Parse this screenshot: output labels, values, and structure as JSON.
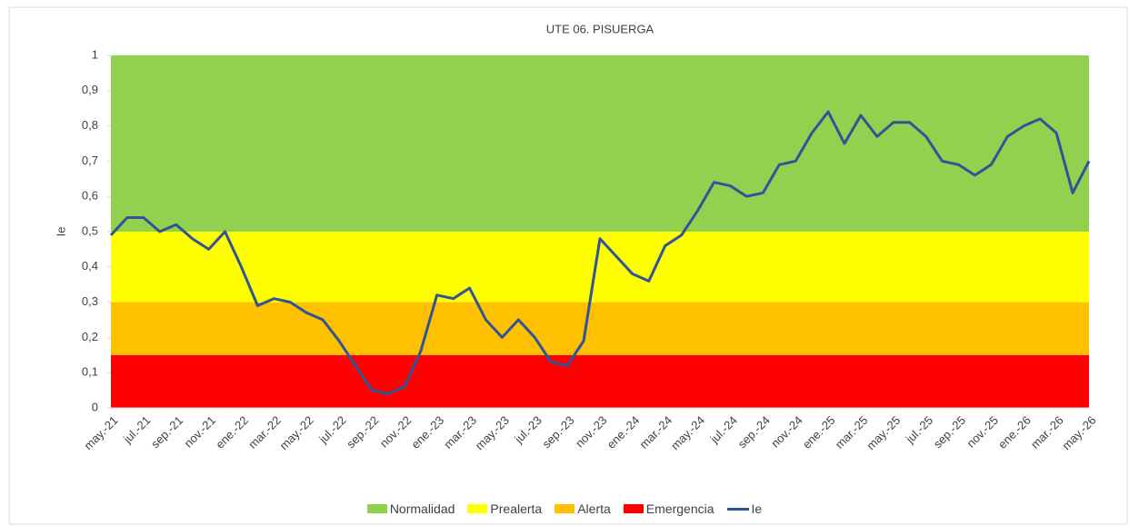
{
  "chart_data": {
    "type": "line",
    "title": "UTE 06. PISUERGA",
    "y_label": "Ie",
    "categories": [
      "may.-21",
      null,
      "jul.-21",
      null,
      "sep.-21",
      null,
      "nov.-21",
      null,
      "ene.-22",
      null,
      "mar.-22",
      null,
      "may.-22",
      null,
      "jul.-22",
      null,
      "sep.-22",
      null,
      "nov.-22",
      null,
      "ene.-23",
      null,
      "mar.-23",
      null,
      "may.-23",
      null,
      "jul.-23",
      null,
      "sep.-23",
      null,
      "nov.-23",
      null,
      "ene.-24",
      null,
      "mar.-24",
      null,
      "may.-24",
      null,
      "jul.-24",
      null,
      "sep.-24",
      null,
      "nov.-24",
      null,
      "ene.-25",
      null,
      "mar.-25",
      null,
      "may.-25",
      null,
      "jul.-25",
      null,
      "sep.-25",
      null,
      "nov.-25",
      null,
      "ene.-26",
      null,
      "mar.-26",
      null,
      "may.-26"
    ],
    "bands": [
      {
        "name": "Normalidad",
        "color": "#92d050",
        "value": 0.5
      },
      {
        "name": "Prealerta",
        "color": "#ffff00",
        "value": 0.2
      },
      {
        "name": "Alerta",
        "color": "#ffc000",
        "value": 0.15
      },
      {
        "name": "Emergencia",
        "color": "#ff0000",
        "value": 0.15
      }
    ],
    "series": [
      {
        "name": "Ie",
        "color": "#2f5597",
        "values": [
          0.49,
          0.54,
          0.54,
          0.5,
          0.52,
          0.48,
          0.45,
          0.5,
          0.4,
          0.29,
          0.31,
          0.3,
          0.27,
          0.25,
          0.19,
          0.12,
          0.05,
          0.04,
          0.06,
          0.16,
          0.32,
          0.31,
          0.34,
          0.25,
          0.2,
          0.25,
          0.2,
          0.13,
          0.12,
          0.19,
          0.48,
          0.43,
          0.38,
          0.36,
          0.46,
          0.49,
          0.56,
          0.64,
          0.63,
          0.6,
          0.61,
          0.69,
          0.7,
          0.78,
          0.84,
          0.75,
          0.83,
          0.77,
          0.81,
          0.81,
          0.77,
          0.7,
          0.69,
          0.66,
          0.69,
          0.77,
          0.8,
          0.82,
          0.78,
          0.61,
          0.7
        ]
      }
    ],
    "ylim": [
      0,
      1
    ],
    "yticks": [
      0,
      {
        "value": 0.1,
        "label": "0,1"
      },
      {
        "value": 0.2,
        "label": "0,2"
      },
      {
        "value": 0.3,
        "label": "0,3"
      },
      {
        "value": 0.4,
        "label": "0,4"
      },
      {
        "value": 0.5,
        "label": "0,5"
      },
      {
        "value": 0.6,
        "label": "0,6"
      },
      {
        "value": 0.7,
        "label": "0,7"
      },
      {
        "value": 0.8,
        "label": "0,8"
      },
      {
        "value": 0.9,
        "label": "0,9"
      },
      1
    ]
  }
}
